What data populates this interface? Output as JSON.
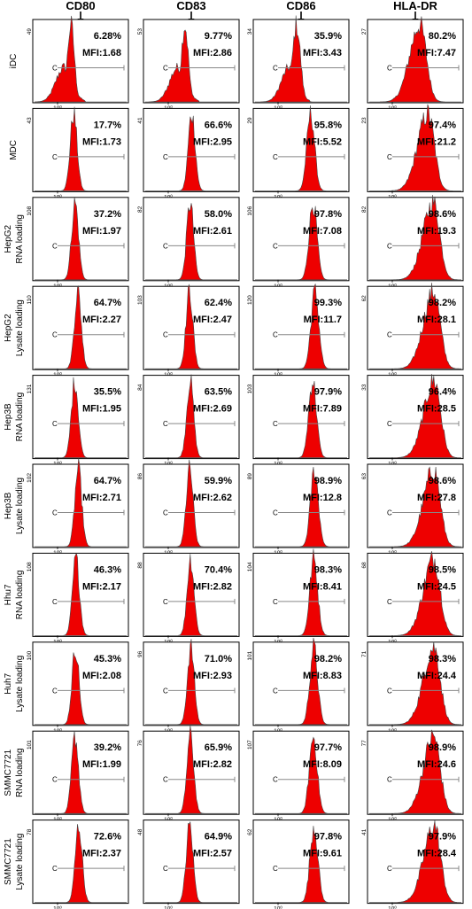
{
  "columns": [
    {
      "label": "CD80"
    },
    {
      "label": "CD83"
    },
    {
      "label": "CD86"
    },
    {
      "label": "HLA-DR"
    }
  ],
  "rows": [
    {
      "line1": "",
      "line2": "iDC"
    },
    {
      "line1": "",
      "line2": "MDC"
    },
    {
      "line1": "HepG2",
      "line2": "RNA loading"
    },
    {
      "line1": "HepG2",
      "line2": "Lysate  loading"
    },
    {
      "line1": "Hep3B",
      "line2": "RNA loading"
    },
    {
      "line1": "Hep3B",
      "line2": "Lysate  loading"
    },
    {
      "line1": "Hhu7",
      "line2": "RNA loading"
    },
    {
      "line1": "Huh7",
      "line2": "Lysate  loading"
    },
    {
      "line1": "SMMC7721",
      "line2": "RNA loading"
    },
    {
      "line1": "SMMC7721",
      "line2": "Lysate  loading"
    }
  ],
  "colors": {
    "histogram_fill": "#ee0000",
    "histogram_edge": "#444444",
    "gate_line": "#888888",
    "frame": "#000000"
  },
  "chart_data": {
    "type": "histogram-grid",
    "x_tick_label": "10⁰",
    "x_scale": "log",
    "gate_marker": "C",
    "panels": [
      [
        {
          "pct": "6.28%",
          "mfi": "MFI:1.68",
          "ymax": "49",
          "peak": 0.58
        },
        {
          "pct": "9.77%",
          "mfi": "MFI:2.86",
          "ymax": "53",
          "peak": 0.72
        },
        {
          "pct": "35.9%",
          "mfi": "MFI:3.43",
          "ymax": "34",
          "peak": 0.8
        },
        {
          "pct": "80.2%",
          "mfi": "MFI:7.47",
          "ymax": "27",
          "peak": 1.2
        }
      ],
      [
        {
          "pct": "17.7%",
          "mfi": "MFI:1.73",
          "ymax": "43",
          "peak": 0.7
        },
        {
          "pct": "66.6%",
          "mfi": "MFI:2.95",
          "ymax": "41",
          "peak": 1.02
        },
        {
          "pct": "95.8%",
          "mfi": "MFI:5.52",
          "ymax": "29",
          "peak": 1.42
        },
        {
          "pct": "97.4%",
          "mfi": "MFI:21.2",
          "ymax": "23",
          "peak": 1.55
        }
      ],
      [
        {
          "pct": "37.2%",
          "mfi": "MFI:1.97",
          "ymax": "108",
          "peak": 0.76
        },
        {
          "pct": "58.0%",
          "mfi": "MFI:2.61",
          "ymax": "82",
          "peak": 0.95
        },
        {
          "pct": "97.8%",
          "mfi": "MFI:7.08",
          "ymax": "106",
          "peak": 1.52
        },
        {
          "pct": "98.6%",
          "mfi": "MFI:19.3",
          "ymax": "82",
          "peak": 1.78
        }
      ],
      [
        {
          "pct": "64.7%",
          "mfi": "MFI:2.27",
          "ymax": "110",
          "peak": 0.88
        },
        {
          "pct": "62.4%",
          "mfi": "MFI:2.47",
          "ymax": "103",
          "peak": 0.92
        },
        {
          "pct": "99.3%",
          "mfi": "MFI:11.7",
          "ymax": "120",
          "peak": 1.6
        },
        {
          "pct": "98.2%",
          "mfi": "MFI:28.1",
          "ymax": "62",
          "peak": 1.8
        }
      ],
      [
        {
          "pct": "35.5%",
          "mfi": "MFI:1.95",
          "ymax": "131",
          "peak": 0.75
        },
        {
          "pct": "63.5%",
          "mfi": "MFI:2.69",
          "ymax": "84",
          "peak": 0.95
        },
        {
          "pct": "97.9%",
          "mfi": "MFI:7.89",
          "ymax": "103",
          "peak": 1.5
        },
        {
          "pct": "96.4%",
          "mfi": "MFI:28.5",
          "ymax": "33",
          "peak": 1.82
        }
      ],
      [
        {
          "pct": "64.7%",
          "mfi": "MFI:2.71",
          "ymax": "102",
          "peak": 0.9
        },
        {
          "pct": "59.9%",
          "mfi": "MFI:2.62",
          "ymax": "86",
          "peak": 0.93
        },
        {
          "pct": "98.9%",
          "mfi": "MFI:12.8",
          "ymax": "89",
          "peak": 1.58
        },
        {
          "pct": "98.6%",
          "mfi": "MFI:27.8",
          "ymax": "63",
          "peak": 1.8
        }
      ],
      [
        {
          "pct": "46.3%",
          "mfi": "MFI:2.17",
          "ymax": "108",
          "peak": 0.8
        },
        {
          "pct": "70.4%",
          "mfi": "MFI:2.82",
          "ymax": "88",
          "peak": 0.97
        },
        {
          "pct": "98.3%",
          "mfi": "MFI:8.41",
          "ymax": "104",
          "peak": 1.55
        },
        {
          "pct": "98.5%",
          "mfi": "MFI:24.5",
          "ymax": "68",
          "peak": 1.8
        }
      ],
      [
        {
          "pct": "45.3%",
          "mfi": "MFI:2.08",
          "ymax": "100",
          "peak": 0.78
        },
        {
          "pct": "71.0%",
          "mfi": "MFI:2.93",
          "ymax": "96",
          "peak": 0.98
        },
        {
          "pct": "98.2%",
          "mfi": "MFI:8.83",
          "ymax": "101",
          "peak": 1.55
        },
        {
          "pct": "98.3%",
          "mfi": "MFI:24.4",
          "ymax": "71",
          "peak": 1.8
        }
      ],
      [
        {
          "pct": "39.2%",
          "mfi": "MFI:1.99",
          "ymax": "101",
          "peak": 0.76
        },
        {
          "pct": "65.9%",
          "mfi": "MFI:2.82",
          "ymax": "76",
          "peak": 0.96
        },
        {
          "pct": "97.7%",
          "mfi": "MFI:8.09",
          "ymax": "107",
          "peak": 1.53
        },
        {
          "pct": "98.9%",
          "mfi": "MFI:24.6",
          "ymax": "77",
          "peak": 1.8
        }
      ],
      [
        {
          "pct": "72.6%",
          "mfi": "MFI:2.37",
          "ymax": "78",
          "peak": 0.92
        },
        {
          "pct": "64.9%",
          "mfi": "MFI:2.57",
          "ymax": "48",
          "peak": 0.93
        },
        {
          "pct": "97.8%",
          "mfi": "MFI:9.61",
          "ymax": "62",
          "peak": 1.56
        },
        {
          "pct": "97.9%",
          "mfi": "MFI:28.4",
          "ymax": "41",
          "peak": 1.82
        }
      ]
    ]
  }
}
